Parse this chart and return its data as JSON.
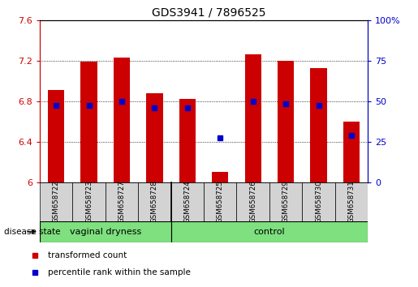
{
  "title": "GDS3941 / 7896525",
  "samples": [
    "GSM658722",
    "GSM658723",
    "GSM658727",
    "GSM658728",
    "GSM658724",
    "GSM658725",
    "GSM658726",
    "GSM658729",
    "GSM658730",
    "GSM658731"
  ],
  "red_values": [
    6.91,
    7.19,
    7.23,
    6.88,
    6.82,
    6.1,
    7.26,
    7.2,
    7.13,
    6.6
  ],
  "blue_values_left": [
    6.755,
    6.755,
    6.8,
    6.735,
    6.735,
    6.435,
    6.8,
    6.775,
    6.755,
    6.465
  ],
  "ylim_left": [
    6.0,
    7.6
  ],
  "ylim_right": [
    0,
    100
  ],
  "yticks_left": [
    6.0,
    6.4,
    6.8,
    7.2,
    7.6
  ],
  "yticks_right": [
    0,
    25,
    50,
    75,
    100
  ],
  "ytick_labels_left": [
    "6",
    "6.4",
    "6.8",
    "7.2",
    "7.6"
  ],
  "ytick_labels_right": [
    "0",
    "25",
    "50",
    "75",
    "100%"
  ],
  "group1_label": "vaginal dryness",
  "group2_label": "control",
  "group_color": "#7EE07E",
  "bar_width": 0.5,
  "marker_size": 5,
  "red_color": "#CC0000",
  "blue_color": "#0000CC",
  "bg_color": "#FFFFFF",
  "tick_area_color": "#D3D3D3",
  "legend_red": "transformed count",
  "legend_blue": "percentile rank within the sample",
  "disease_state_label": "disease state",
  "vd_split": 3.5,
  "n_vd": 4,
  "n_ctrl": 6
}
